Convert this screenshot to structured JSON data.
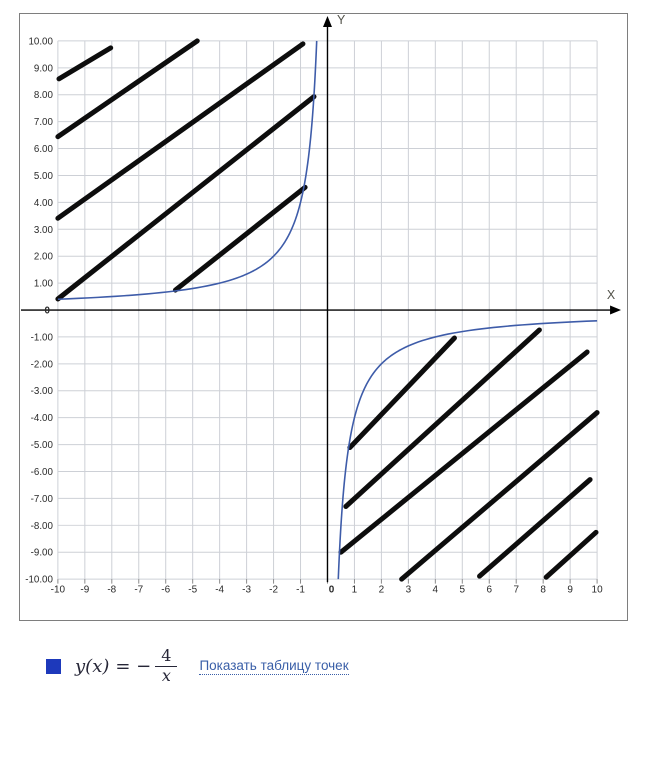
{
  "chart_data": {
    "type": "line",
    "title": "",
    "xlabel": "X",
    "ylabel": "Y",
    "x_range": [
      -10,
      10
    ],
    "y_range": [
      -10,
      10
    ],
    "grid": true,
    "function": {
      "expression": "y(x) = -4/x",
      "numerator_coefficient": -4,
      "branches": [
        {
          "domain": [
            -10,
            -0.4
          ],
          "range": [
            0.4,
            10
          ]
        },
        {
          "domain": [
            0.4,
            10
          ],
          "range": [
            -10,
            -0.4
          ]
        }
      ]
    },
    "formula": {
      "lhs": "y(x)",
      "eq": "= −",
      "numerator": "4",
      "denominator": "x"
    },
    "region": "diagonal hatch where x*y <= -4 (above curve for x<0, below curve for x>0)",
    "hatch_segments": [
      [
        -9.96,
        8.59,
        -8.04,
        9.74
      ],
      [
        -10.0,
        6.44,
        -4.83,
        10.0
      ],
      [
        -10.0,
        3.41,
        -0.91,
        9.89
      ],
      [
        -10.0,
        0.41,
        -0.5,
        7.93
      ],
      [
        -5.64,
        0.74,
        -0.83,
        4.56
      ],
      [
        0.83,
        -5.11,
        4.71,
        -1.04
      ],
      [
        0.68,
        -7.3,
        7.86,
        -0.74
      ],
      [
        0.5,
        -9.0,
        9.63,
        -1.56
      ],
      [
        2.75,
        -10.0,
        10.0,
        -3.81
      ],
      [
        5.64,
        -9.89,
        9.74,
        -6.3
      ],
      [
        8.11,
        -9.93,
        9.96,
        -8.26
      ]
    ],
    "x_ticks": [
      {
        "value": -10,
        "label": "-10"
      },
      {
        "value": -9,
        "label": "-9"
      },
      {
        "value": -8,
        "label": "-8"
      },
      {
        "value": -7,
        "label": "-7"
      },
      {
        "value": -6,
        "label": "-6"
      },
      {
        "value": -5,
        "label": "-5"
      },
      {
        "value": -4,
        "label": "-4"
      },
      {
        "value": -3,
        "label": "-3"
      },
      {
        "value": -2,
        "label": "-2"
      },
      {
        "value": -1,
        "label": "-1"
      },
      {
        "value": 0,
        "label": "0"
      },
      {
        "value": 1,
        "label": "1"
      },
      {
        "value": 2,
        "label": "2"
      },
      {
        "value": 3,
        "label": "3"
      },
      {
        "value": 4,
        "label": "4"
      },
      {
        "value": 5,
        "label": "5"
      },
      {
        "value": 6,
        "label": "6"
      },
      {
        "value": 7,
        "label": "7"
      },
      {
        "value": 8,
        "label": "8"
      },
      {
        "value": 9,
        "label": "9"
      },
      {
        "value": 10,
        "label": "10"
      }
    ],
    "y_ticks": [
      {
        "value": 10,
        "label": "10.00"
      },
      {
        "value": 9,
        "label": "9.00"
      },
      {
        "value": 8,
        "label": "8.00"
      },
      {
        "value": 7,
        "label": "7.00"
      },
      {
        "value": 6,
        "label": "6.00"
      },
      {
        "value": 5,
        "label": "5.00"
      },
      {
        "value": 4,
        "label": "4.00"
      },
      {
        "value": 3,
        "label": "3.00"
      },
      {
        "value": 2,
        "label": "2.00"
      },
      {
        "value": 1,
        "label": "1.00"
      },
      {
        "value": 0,
        "label": "0"
      },
      {
        "value": -1,
        "label": "-1.00"
      },
      {
        "value": -2,
        "label": "-2.00"
      },
      {
        "value": -3,
        "label": "-3.00"
      },
      {
        "value": -4,
        "label": "-4.00"
      },
      {
        "value": -5,
        "label": "-5.00"
      },
      {
        "value": -6,
        "label": "-6.00"
      },
      {
        "value": -7,
        "label": "-7.00"
      },
      {
        "value": -8,
        "label": "-8.00"
      },
      {
        "value": -9,
        "label": "-9.00"
      },
      {
        "value": -10,
        "label": "-10.00"
      }
    ],
    "colors": {
      "curve": "#3e5ca9",
      "hatch": "#0d0d0d",
      "grid": "#cdd0d6",
      "axis": "#000000",
      "tick_label": "#2a2a2a",
      "axis_letter": "#52524a",
      "tick_mark": "#8a8a8a"
    },
    "legend_position": "bottom-left"
  },
  "legend": {
    "swatch_color": "#1d39bb",
    "link_label": "Показать таблицу точек"
  }
}
